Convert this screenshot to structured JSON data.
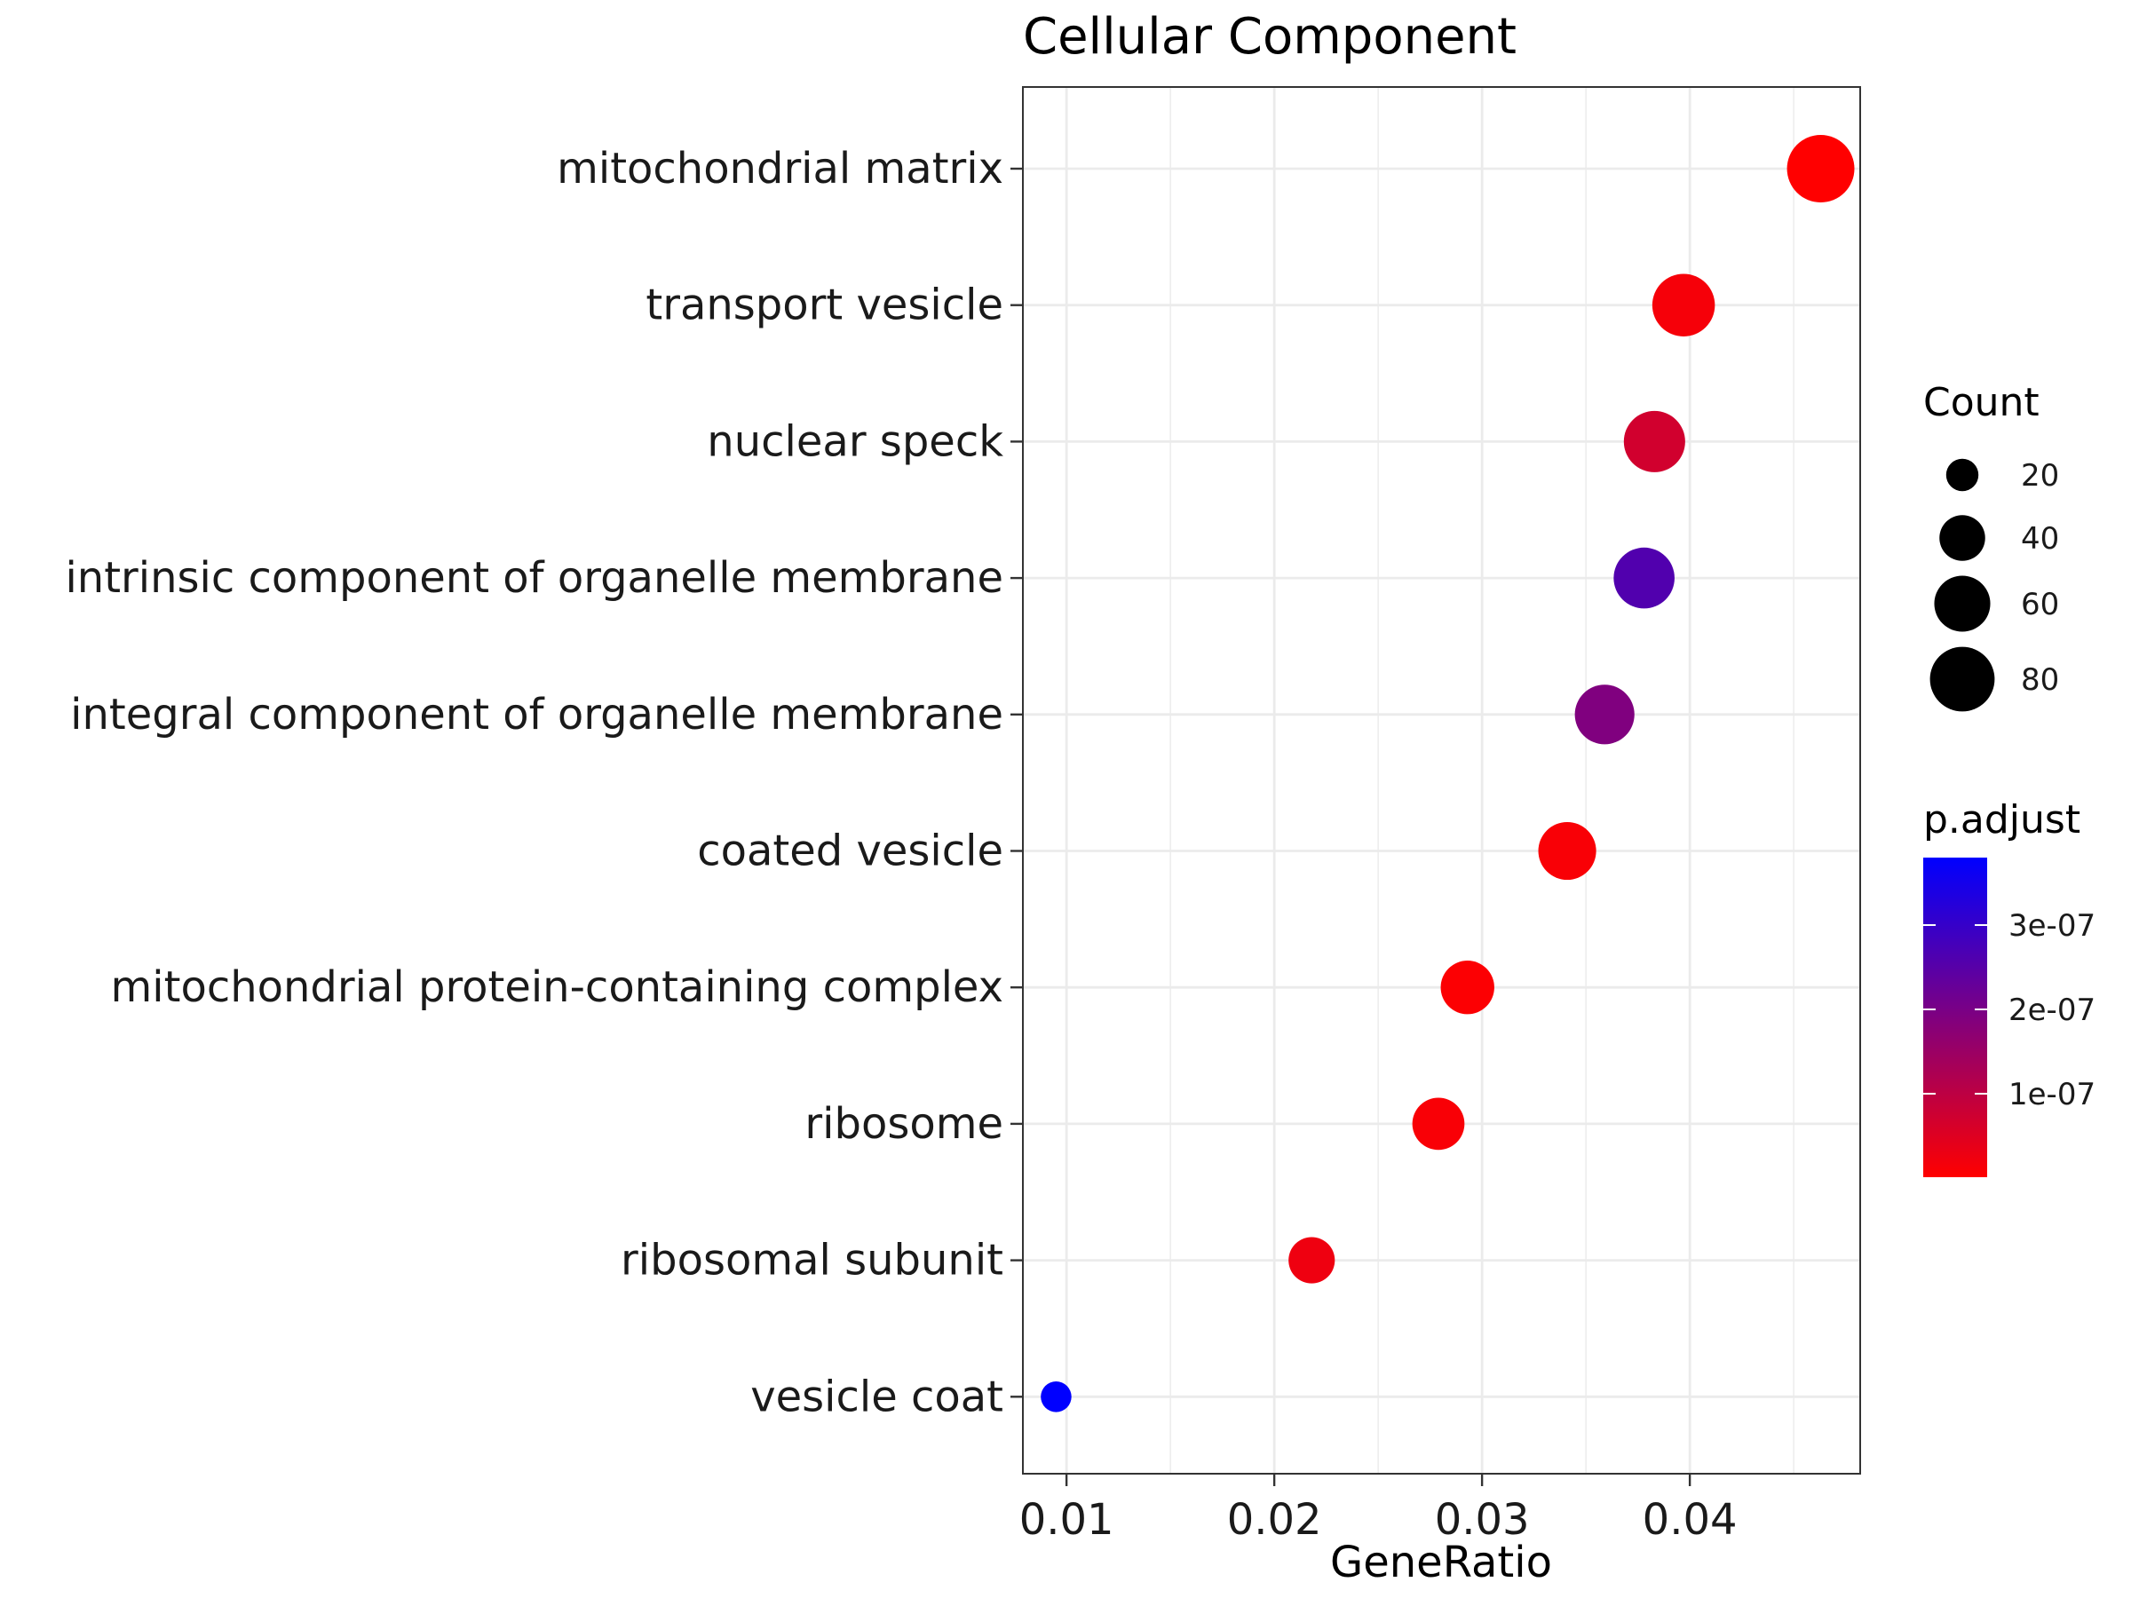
{
  "chart_data": {
    "type": "scatter",
    "title": "Cellular Component",
    "xlabel": "GeneRatio",
    "ylabel": "",
    "xlim": [
      0.0079,
      0.0482
    ],
    "xticks": [
      0.01,
      0.02,
      0.03,
      0.04
    ],
    "xtick_labels": [
      "0.01",
      "0.02",
      "0.03",
      "0.04"
    ],
    "grid": true,
    "legend_position": "right",
    "categories": [
      "mitochondrial matrix",
      "transport vesicle",
      "nuclear speck",
      "intrinsic component of organelle membrane",
      "integral component of organelle membrane",
      "coated vesicle",
      "mitochondrial protein-containing complex",
      "ribosome",
      "ribosomal subunit",
      "vesicle coat"
    ],
    "points": [
      {
        "term": "mitochondrial matrix",
        "gene_ratio": 0.0463,
        "count": 87,
        "p_adjust": 1e-09
      },
      {
        "term": "transport vesicle",
        "gene_ratio": 0.0397,
        "count": 75,
        "p_adjust": 1.5e-08
      },
      {
        "term": "nuclear speck",
        "gene_ratio": 0.0383,
        "count": 72,
        "p_adjust": 7e-08
      },
      {
        "term": "intrinsic component of organelle membrane",
        "gene_ratio": 0.0378,
        "count": 71,
        "p_adjust": 2.6e-07
      },
      {
        "term": "integral component of organelle membrane",
        "gene_ratio": 0.0359,
        "count": 68,
        "p_adjust": 1.9e-07
      },
      {
        "term": "coated vesicle",
        "gene_ratio": 0.0341,
        "count": 64,
        "p_adjust": 1e-08
      },
      {
        "term": "mitochondrial protein-containing complex",
        "gene_ratio": 0.0293,
        "count": 55,
        "p_adjust": 5e-09
      },
      {
        "term": "ribosome",
        "gene_ratio": 0.0279,
        "count": 52,
        "p_adjust": 1e-08
      },
      {
        "term": "ribosomal subunit",
        "gene_ratio": 0.0218,
        "count": 41,
        "p_adjust": 2.5e-08
      },
      {
        "term": "vesicle coat",
        "gene_ratio": 0.0095,
        "count": 18,
        "p_adjust": 3.8e-07
      }
    ],
    "size_legend": {
      "title": "Count",
      "values": [
        20,
        40,
        60,
        80
      ],
      "labels": [
        "20",
        "40",
        "60",
        "80"
      ]
    },
    "color_legend": {
      "title": "p.adjust",
      "low_color": "#ff0000",
      "high_color": "#0000ff",
      "range": [
        1e-09,
        3.8e-07
      ],
      "ticks": [
        1e-07,
        2e-07,
        3e-07
      ],
      "tick_labels": [
        "1e-07",
        "2e-07",
        "3e-07"
      ]
    }
  }
}
